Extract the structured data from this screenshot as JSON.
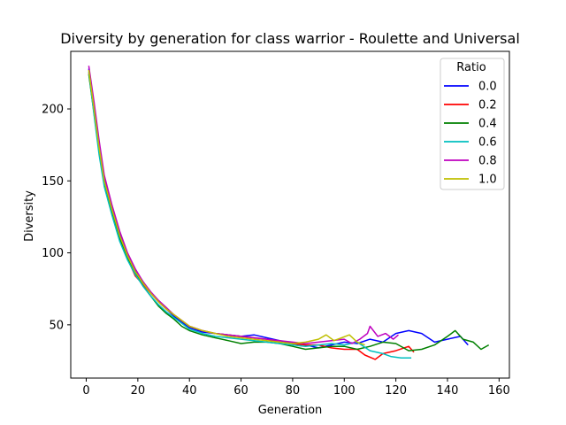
{
  "chart_data": {
    "type": "line",
    "title": "Diversity by generation for class warrior - Roulette and Universal",
    "xlabel": "Generation",
    "ylabel": "Diversity",
    "xlim": [
      -6,
      164
    ],
    "ylim": [
      13,
      240
    ],
    "xticks": [
      0,
      20,
      40,
      60,
      80,
      100,
      120,
      140,
      160
    ],
    "yticks": [
      50,
      100,
      150,
      200
    ],
    "grid": false,
    "legend": {
      "title": "Ratio",
      "placement": "top-right"
    },
    "series": [
      {
        "name": "0.0",
        "color": "#0000ff",
        "points": [
          [
            1,
            228
          ],
          [
            3,
            200
          ],
          [
            5,
            175
          ],
          [
            7,
            152
          ],
          [
            10,
            132
          ],
          [
            13,
            113
          ],
          [
            16,
            99
          ],
          [
            19,
            88
          ],
          [
            22,
            80
          ],
          [
            25,
            72
          ],
          [
            28,
            66
          ],
          [
            31,
            61
          ],
          [
            34,
            56
          ],
          [
            37,
            52
          ],
          [
            40,
            48
          ],
          [
            45,
            45
          ],
          [
            50,
            44
          ],
          [
            55,
            43
          ],
          [
            60,
            42
          ],
          [
            65,
            43
          ],
          [
            70,
            41
          ],
          [
            75,
            39
          ],
          [
            80,
            37
          ],
          [
            85,
            36
          ],
          [
            90,
            34
          ],
          [
            95,
            36
          ],
          [
            100,
            38
          ],
          [
            105,
            37
          ],
          [
            110,
            40
          ],
          [
            115,
            38
          ],
          [
            120,
            44
          ],
          [
            125,
            46
          ],
          [
            130,
            44
          ],
          [
            135,
            38
          ],
          [
            140,
            40
          ],
          [
            145,
            42
          ],
          [
            148,
            36
          ]
        ]
      },
      {
        "name": "0.2",
        "color": "#ff0000",
        "points": [
          [
            1,
            225
          ],
          [
            3,
            198
          ],
          [
            5,
            172
          ],
          [
            7,
            150
          ],
          [
            10,
            130
          ],
          [
            13,
            110
          ],
          [
            16,
            96
          ],
          [
            19,
            84
          ],
          [
            22,
            78
          ],
          [
            25,
            72
          ],
          [
            28,
            66
          ],
          [
            31,
            61
          ],
          [
            34,
            57
          ],
          [
            37,
            53
          ],
          [
            40,
            49
          ],
          [
            45,
            46
          ],
          [
            50,
            44
          ],
          [
            55,
            43
          ],
          [
            60,
            42
          ],
          [
            65,
            41
          ],
          [
            70,
            40
          ],
          [
            75,
            38
          ],
          [
            80,
            37
          ],
          [
            85,
            36
          ],
          [
            90,
            36
          ],
          [
            95,
            34
          ],
          [
            100,
            33
          ],
          [
            105,
            33
          ],
          [
            108,
            29
          ],
          [
            112,
            26
          ],
          [
            115,
            30
          ],
          [
            120,
            32
          ],
          [
            125,
            35
          ],
          [
            127,
            31
          ]
        ]
      },
      {
        "name": "0.4",
        "color": "#008000",
        "points": [
          [
            1,
            224
          ],
          [
            3,
            197
          ],
          [
            5,
            170
          ],
          [
            7,
            148
          ],
          [
            10,
            128
          ],
          [
            13,
            110
          ],
          [
            16,
            96
          ],
          [
            19,
            86
          ],
          [
            22,
            77
          ],
          [
            25,
            70
          ],
          [
            28,
            63
          ],
          [
            31,
            58
          ],
          [
            34,
            54
          ],
          [
            37,
            49
          ],
          [
            40,
            46
          ],
          [
            45,
            43
          ],
          [
            50,
            41
          ],
          [
            55,
            39
          ],
          [
            60,
            37
          ],
          [
            65,
            38
          ],
          [
            70,
            38
          ],
          [
            75,
            37
          ],
          [
            80,
            35
          ],
          [
            85,
            33
          ],
          [
            90,
            34
          ],
          [
            95,
            35
          ],
          [
            100,
            35
          ],
          [
            105,
            33
          ],
          [
            110,
            35
          ],
          [
            115,
            38
          ],
          [
            120,
            37
          ],
          [
            125,
            32
          ],
          [
            130,
            33
          ],
          [
            135,
            36
          ],
          [
            140,
            42
          ],
          [
            143,
            46
          ],
          [
            146,
            40
          ],
          [
            150,
            38
          ],
          [
            153,
            33
          ],
          [
            156,
            36
          ]
        ]
      },
      {
        "name": "0.6",
        "color": "#00bfbf",
        "points": [
          [
            1,
            226
          ],
          [
            3,
            196
          ],
          [
            5,
            168
          ],
          [
            7,
            146
          ],
          [
            10,
            126
          ],
          [
            13,
            108
          ],
          [
            16,
            95
          ],
          [
            19,
            85
          ],
          [
            22,
            77
          ],
          [
            25,
            70
          ],
          [
            28,
            64
          ],
          [
            31,
            59
          ],
          [
            34,
            55
          ],
          [
            37,
            51
          ],
          [
            40,
            47
          ],
          [
            45,
            44
          ],
          [
            50,
            42
          ],
          [
            55,
            41
          ],
          [
            60,
            40
          ],
          [
            65,
            39
          ],
          [
            70,
            38
          ],
          [
            75,
            37
          ],
          [
            80,
            36
          ],
          [
            85,
            35
          ],
          [
            90,
            36
          ],
          [
            95,
            37
          ],
          [
            100,
            36
          ],
          [
            105,
            38
          ],
          [
            110,
            32
          ],
          [
            115,
            30
          ],
          [
            118,
            28
          ],
          [
            122,
            27
          ],
          [
            126,
            27
          ]
        ]
      },
      {
        "name": "0.8",
        "color": "#bf00bf",
        "points": [
          [
            1,
            230
          ],
          [
            3,
            205
          ],
          [
            5,
            178
          ],
          [
            7,
            154
          ],
          [
            10,
            133
          ],
          [
            13,
            115
          ],
          [
            16,
            100
          ],
          [
            19,
            89
          ],
          [
            22,
            80
          ],
          [
            25,
            73
          ],
          [
            28,
            67
          ],
          [
            31,
            62
          ],
          [
            34,
            57
          ],
          [
            37,
            53
          ],
          [
            40,
            49
          ],
          [
            45,
            46
          ],
          [
            50,
            44
          ],
          [
            55,
            43
          ],
          [
            60,
            42
          ],
          [
            65,
            41
          ],
          [
            70,
            40
          ],
          [
            75,
            39
          ],
          [
            80,
            38
          ],
          [
            85,
            37
          ],
          [
            90,
            38
          ],
          [
            95,
            39
          ],
          [
            100,
            40
          ],
          [
            103,
            37
          ],
          [
            106,
            40
          ],
          [
            109,
            44
          ],
          [
            110,
            49
          ],
          [
            113,
            42
          ],
          [
            116,
            44
          ],
          [
            119,
            40
          ],
          [
            121,
            43
          ]
        ]
      },
      {
        "name": "1.0",
        "color": "#bfbf00",
        "points": [
          [
            1,
            227
          ],
          [
            3,
            200
          ],
          [
            5,
            173
          ],
          [
            7,
            150
          ],
          [
            10,
            130
          ],
          [
            13,
            112
          ],
          [
            16,
            98
          ],
          [
            19,
            87
          ],
          [
            22,
            79
          ],
          [
            25,
            72
          ],
          [
            28,
            66
          ],
          [
            31,
            61
          ],
          [
            34,
            57
          ],
          [
            37,
            53
          ],
          [
            40,
            49
          ],
          [
            45,
            46
          ],
          [
            50,
            44
          ],
          [
            55,
            42
          ],
          [
            60,
            41
          ],
          [
            65,
            40
          ],
          [
            70,
            39
          ],
          [
            75,
            38
          ],
          [
            80,
            37
          ],
          [
            85,
            38
          ],
          [
            90,
            40
          ],
          [
            93,
            43
          ],
          [
            96,
            39
          ],
          [
            99,
            41
          ],
          [
            102,
            43
          ],
          [
            105,
            38
          ],
          [
            108,
            36
          ]
        ]
      }
    ]
  }
}
